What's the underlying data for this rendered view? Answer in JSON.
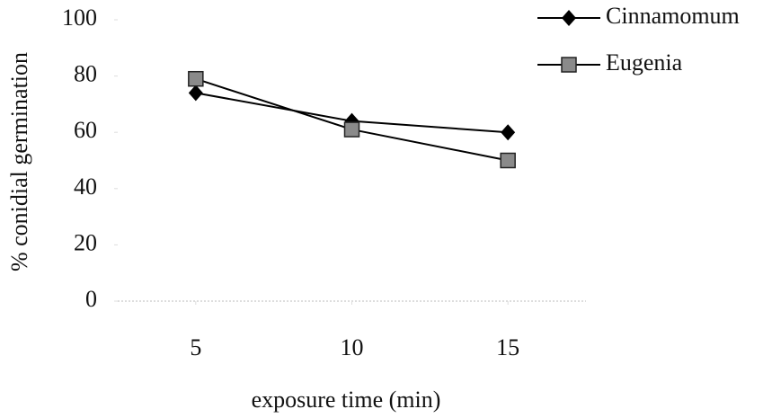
{
  "chart_data": {
    "type": "line",
    "x_label": "exposure time (min)",
    "y_label": "% conidial germination",
    "x": [
      5,
      10,
      15
    ],
    "xlim": [
      2.5,
      17.5
    ],
    "xticks": [
      5,
      10,
      15
    ],
    "ylim": [
      0,
      100
    ],
    "yticks": [
      0,
      20,
      40,
      60,
      80,
      100
    ],
    "legend": "top-right",
    "series": [
      {
        "name": "Cinnamomum",
        "color": "#000000",
        "marker": "diamond",
        "marker_color": "#000000",
        "values": [
          74,
          64,
          60
        ]
      },
      {
        "name": "Eugenia",
        "color": "#000000",
        "marker": "square",
        "marker_color": "#8a8a8a",
        "values": [
          79,
          61,
          50
        ]
      }
    ]
  }
}
